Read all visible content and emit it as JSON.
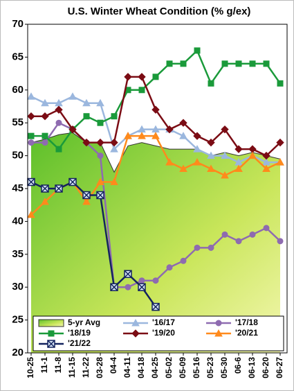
{
  "chart_data": {
    "type": "line",
    "title": "U.S. Winter Wheat Condition (% g/ex)",
    "categories": [
      "10-25",
      "11-1",
      "11-8",
      "11-15",
      "11-22",
      "03-28",
      "04-4",
      "04-11",
      "04-18",
      "04-25",
      "05-02",
      "05-09",
      "05-16",
      "05-23",
      "05-30",
      "06-6",
      "06-13",
      "06-20",
      "06-27"
    ],
    "ylim": [
      20,
      70
    ],
    "yticks": [
      20,
      25,
      30,
      35,
      40,
      45,
      50,
      55,
      60,
      65,
      70
    ],
    "series": [
      {
        "name": "5-yr Avg",
        "kind": "area",
        "color": "#8dc63f",
        "marker": "none",
        "values": [
          52,
          52.5,
          53.2,
          53.5,
          52,
          52,
          47.5,
          51.5,
          52,
          51.5,
          51,
          51,
          51,
          50,
          50.5,
          50,
          50.5,
          50,
          49.5
        ]
      },
      {
        "name": "'16/17",
        "color": "#9bb7de",
        "marker": "triangle",
        "values": [
          59,
          58,
          58,
          59,
          58,
          58,
          51,
          53,
          54,
          54,
          54,
          53,
          51,
          50,
          50,
          49,
          50,
          49,
          49
        ]
      },
      {
        "name": "'17/18",
        "color": "#8e6bb0",
        "marker": "circle",
        "values": [
          52,
          52,
          55,
          54,
          52,
          50,
          30,
          30,
          31,
          31,
          33,
          34,
          36,
          36,
          38,
          37,
          38,
          39,
          37
        ]
      },
      {
        "name": "'18/19",
        "color": "#1a9a3a",
        "marker": "square",
        "values": [
          53,
          53,
          51,
          54,
          56,
          55,
          56,
          60,
          60,
          62,
          64,
          64,
          66,
          61,
          64,
          64,
          64,
          64,
          61
        ]
      },
      {
        "name": "'19/20",
        "color": "#7b0c14",
        "marker": "diamond",
        "values": [
          56,
          56,
          57,
          54,
          52,
          52,
          52,
          62,
          62,
          57,
          54,
          55,
          53,
          52,
          54,
          51,
          51,
          50,
          52
        ]
      },
      {
        "name": "'20/21",
        "color": "#ff8a1c",
        "marker": "triangle",
        "values": [
          41,
          43,
          45,
          46,
          43,
          46,
          46,
          53,
          53,
          53,
          49,
          48,
          49,
          48,
          47,
          48,
          50,
          48,
          49
        ]
      },
      {
        "name": "'21/22",
        "color": "#13235e",
        "marker": "x",
        "values": [
          46,
          45,
          45,
          46,
          44,
          44,
          30,
          32,
          30,
          27,
          null,
          null,
          null,
          null,
          null,
          null,
          null,
          null,
          null
        ]
      }
    ]
  }
}
